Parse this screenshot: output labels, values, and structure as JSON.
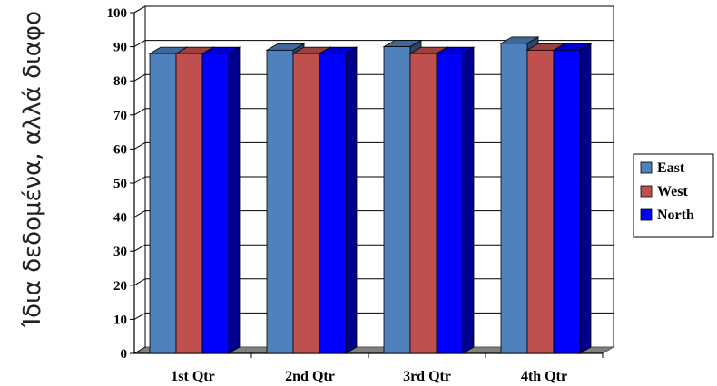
{
  "side_caption": "Ίδια δεδομένα, αλλά διαφο",
  "chart_data": {
    "type": "bar",
    "categories": [
      "1st Qtr",
      "2nd Qtr",
      "3rd Qtr",
      "4th Qtr"
    ],
    "series": [
      {
        "name": "East",
        "values": [
          88,
          89,
          90,
          91
        ],
        "color": "#4F81BD"
      },
      {
        "name": "West",
        "values": [
          88,
          88,
          88,
          89
        ],
        "color": "#C0504D"
      },
      {
        "name": "North",
        "values": [
          88,
          88,
          88,
          89
        ],
        "color": "#0000FF"
      }
    ],
    "ylim": [
      0,
      100
    ],
    "yticks": [
      "0",
      "10",
      "20",
      "30",
      "40",
      "50",
      "60",
      "70",
      "80",
      "90",
      "100"
    ],
    "grid": true,
    "legend_position": "right",
    "style": "3d-clustered-column",
    "title": "",
    "xlabel": "",
    "ylabel": ""
  }
}
